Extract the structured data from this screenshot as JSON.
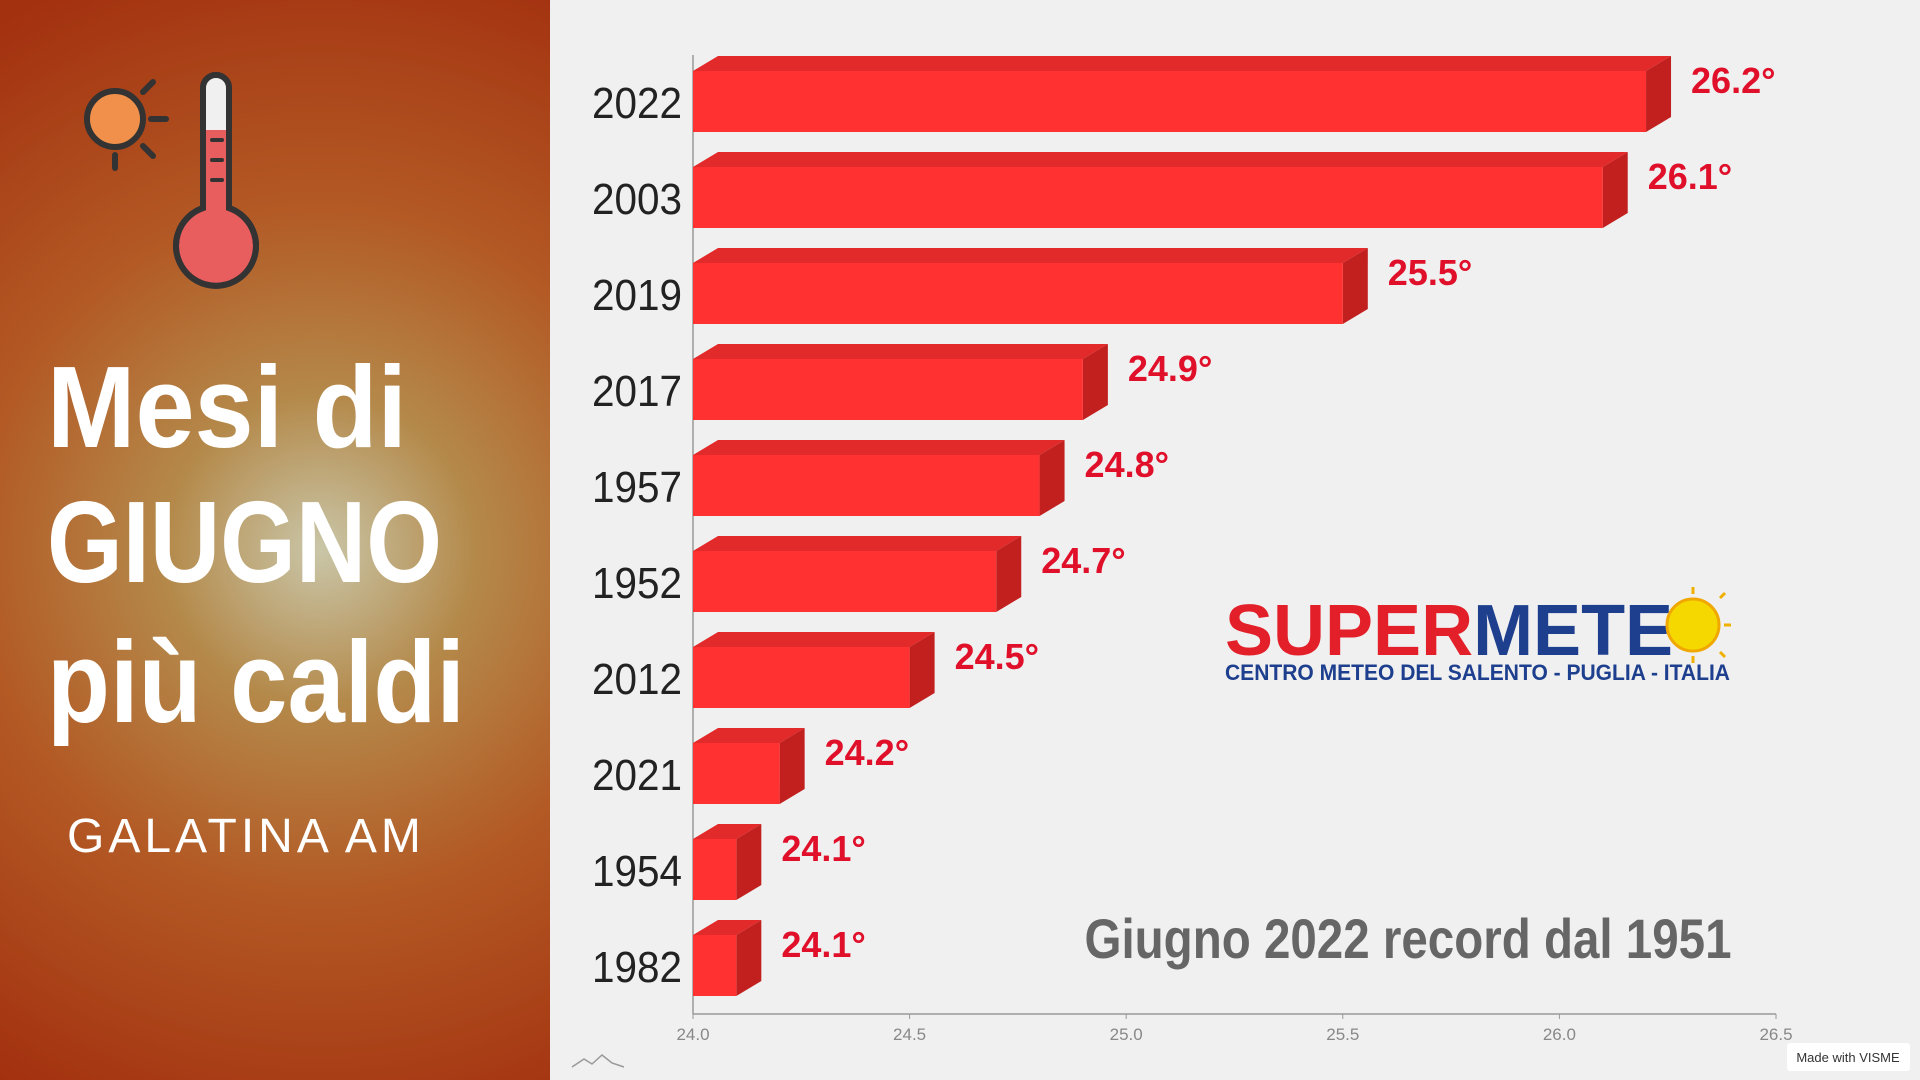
{
  "chart_data": {
    "type": "bar",
    "orientation": "horizontal",
    "title": [
      "Mesi di",
      "GIUGNO",
      "più caldi"
    ],
    "subtitle": "GALATINA AM",
    "annotation": "Giugno 2022 record dal 1951",
    "categories": [
      "2022",
      "2003",
      "2019",
      "2017",
      "1957",
      "1952",
      "2012",
      "2021",
      "1954",
      "1982"
    ],
    "values": [
      26.2,
      26.1,
      25.5,
      24.9,
      24.8,
      24.7,
      24.5,
      24.2,
      24.1,
      24.1
    ],
    "value_labels": [
      "26.2°",
      "26.1°",
      "25.5°",
      "24.9°",
      "24.8°",
      "24.7°",
      "24.5°",
      "24.2°",
      "24.1°",
      "24.1°"
    ],
    "color": "#ff3131",
    "xlim": [
      24.0,
      26.5
    ],
    "xticks": [
      {
        "value": 24,
        "label": "24.0"
      },
      24.5,
      {
        "value": 25,
        "label": "25.0"
      },
      25.5,
      {
        "value": 26,
        "label": "26.0"
      },
      26.5
    ],
    "grid": false
  },
  "logo": {
    "brand": [
      "SUPER",
      "METE"
    ],
    "tagline": "CENTRO METEO DEL SALENTO - PUGLIA - ITALIA"
  },
  "footer": "Made with VISME"
}
